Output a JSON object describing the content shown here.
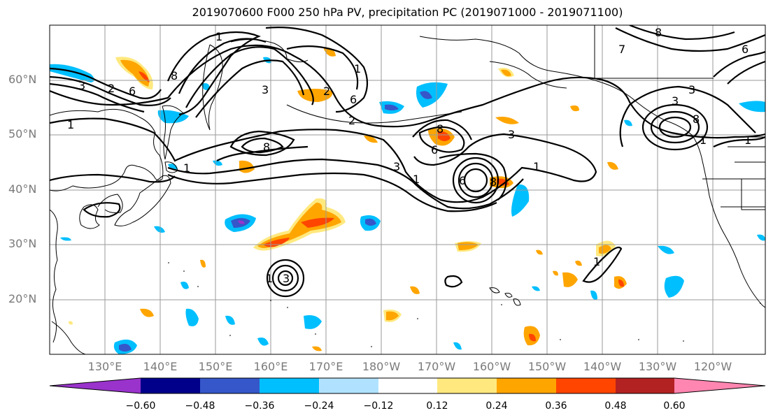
{
  "title": "2019070600 F000 250 hPa PV, precipitation PC (2019071000 - 2019071100)",
  "lat_labels": [
    "60°N",
    "50°N",
    "40°N",
    "30°N",
    "20°N"
  ],
  "lon_labels": [
    "130°E",
    "140°E",
    "150°E",
    "160°E",
    "170°E",
    "180°W",
    "170°W",
    "160°W",
    "150°W",
    "140°W",
    "130°W",
    "120°W"
  ],
  "colorbar": {
    "ticks": [
      "−0.60",
      "−0.48",
      "−0.36",
      "−0.24",
      "−0.12",
      "0.12",
      "0.24",
      "0.36",
      "0.48",
      "0.60"
    ],
    "colors": [
      "#9933cc",
      "#00008b",
      "#3557c9",
      "#00bfff",
      "#b0e2ff",
      "#ffffff",
      "#ffe97f",
      "#ffa500",
      "#ff4500",
      "#b22222",
      "#ff86b0"
    ]
  },
  "contour_labels": [
    "3",
    "1",
    "2",
    "8",
    "6",
    "1",
    "3",
    "1",
    "2",
    "8",
    "6",
    "2",
    "3",
    "1",
    "8",
    "6",
    "3",
    "1",
    "6",
    "1",
    "8",
    "3",
    "1",
    "8",
    "6",
    "1",
    "3",
    "1",
    "1",
    "3",
    "8",
    "7"
  ]
}
